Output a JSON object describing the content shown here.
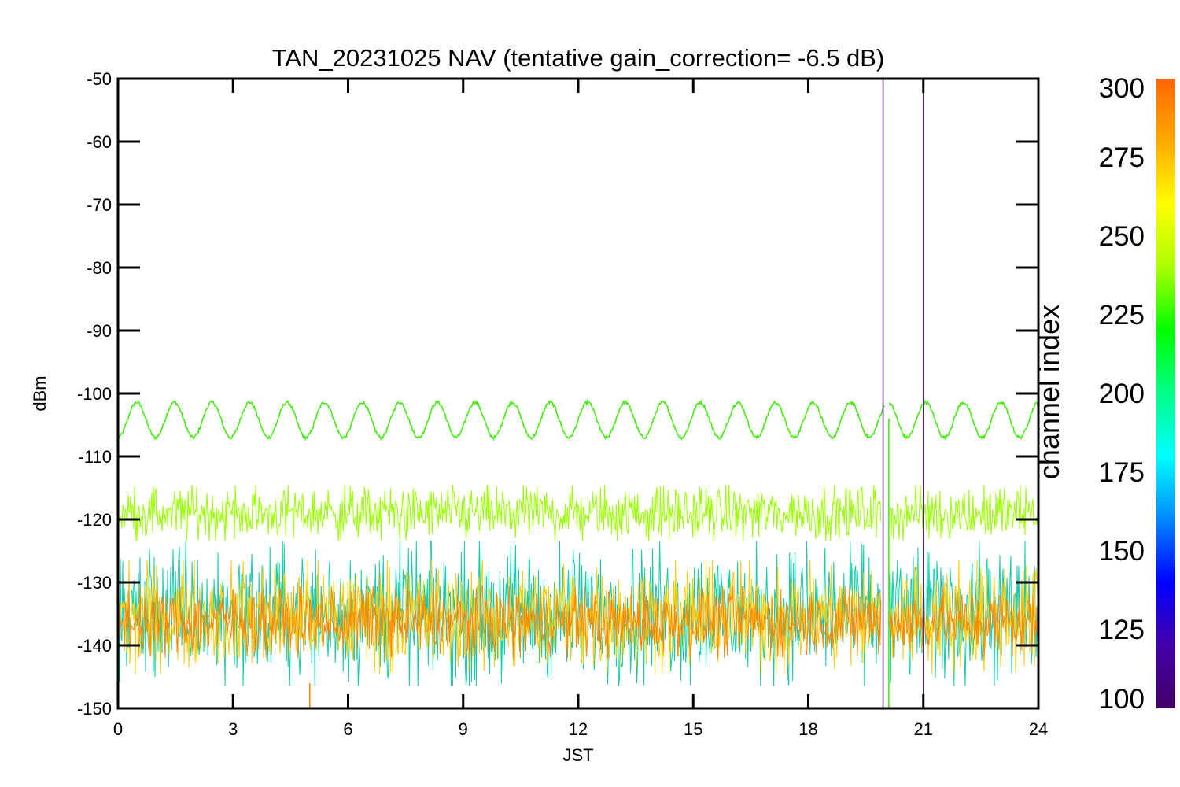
{
  "chart_data": {
    "type": "line",
    "title": "TAN_20231025 NAV (tentative gain_correction= -6.5 dB)",
    "xlabel": "JST",
    "ylabel": "dBm",
    "xlim": [
      0,
      24
    ],
    "ylim": [
      -150,
      -50
    ],
    "x_ticks": [
      0,
      3,
      6,
      9,
      12,
      15,
      18,
      21,
      24
    ],
    "y_ticks": [
      -50,
      -60,
      -70,
      -80,
      -90,
      -100,
      -110,
      -120,
      -130,
      -140,
      -150
    ],
    "grid": false,
    "series": [
      {
        "channel_index": 240,
        "color": "#44ee11",
        "kind": "sinusoid",
        "center": -104.2,
        "amplitude": 2.8,
        "cycles_per_24h": 24.5,
        "gap": [
          20.0,
          20.1
        ]
      },
      {
        "channel_index": 260,
        "color": "#99ff00",
        "kind": "noise_band",
        "low": -123.5,
        "high": -114.5,
        "gap": [
          19.9,
          20.1
        ]
      },
      {
        "channel_index": 175,
        "color": "#11ccaa",
        "kind": "noise_band",
        "low": -146.5,
        "high": -123.5,
        "gap": [
          19.9,
          20.1
        ]
      },
      {
        "channel_index": 280,
        "color": "#ffcc00",
        "kind": "noise_band",
        "low": -144.5,
        "high": -126.5,
        "gap": [
          19.9,
          20.1
        ]
      },
      {
        "channel_index": 295,
        "color": "#ff8800",
        "kind": "noise_band",
        "low": -142,
        "high": -130.5,
        "gap": [
          19.9,
          20.1
        ]
      }
    ],
    "spikes": [
      {
        "x": 19.95,
        "y_top": -50,
        "y_bottom": -150,
        "color": "#552288"
      },
      {
        "x": 21.0,
        "y_top": -52,
        "y_bottom": -150,
        "color": "#552288"
      },
      {
        "x": 20.1,
        "y_top": -104,
        "y_bottom": -150,
        "color": "#44ee11"
      },
      {
        "x": 5.0,
        "y_top": -146,
        "y_bottom": -150,
        "color": "#ff8800"
      }
    ],
    "colorbar": {
      "label": "channel index",
      "min": 100,
      "max": 300,
      "ticks": [
        300,
        275,
        250,
        225,
        200,
        175,
        150,
        125,
        100
      ],
      "colors": [
        "#440066",
        "#4400aa",
        "#0000ff",
        "#0088ff",
        "#00ffff",
        "#00ff88",
        "#00ff00",
        "#aaff00",
        "#ffff00",
        "#ffaa00",
        "#ff6600"
      ]
    }
  }
}
